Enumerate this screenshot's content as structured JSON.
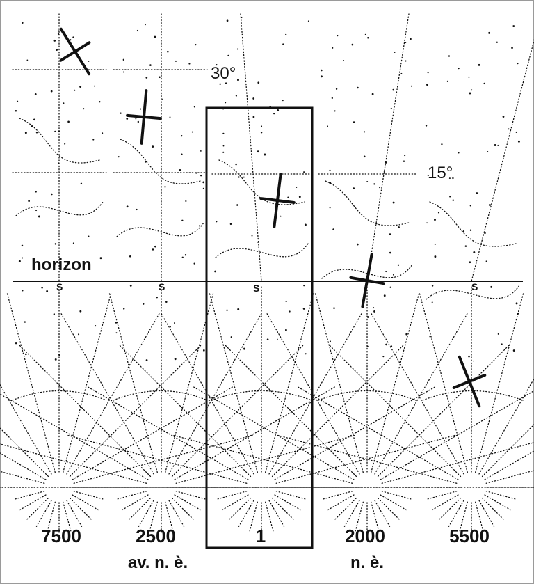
{
  "labels": {
    "horizon": "horizon",
    "deg30": "30°",
    "deg15": "15°",
    "south": "S"
  },
  "panels": [
    {
      "year": "7500",
      "era": "av. n. è."
    },
    {
      "year": "2500",
      "era": ""
    },
    {
      "year": "1",
      "era": "",
      "highlighted": true
    },
    {
      "year": "2000",
      "era": "n. è."
    },
    {
      "year": "5500",
      "era": ""
    }
  ],
  "colors": {
    "ink": "#111111",
    "frame": "#9a9a9a",
    "background": "#ffffff"
  }
}
